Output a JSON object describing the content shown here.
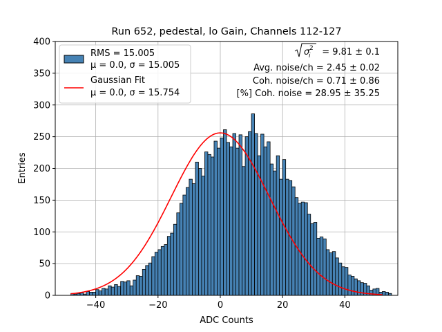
{
  "chart_data": {
    "type": "bar",
    "title": "Run 652, pedestal, lo Gain, Channels 112-127",
    "xlabel": "ADC Counts",
    "ylabel": "Entries",
    "xlim": [
      -53,
      57
    ],
    "ylim": [
      0,
      400
    ],
    "x_ticks": [
      -40,
      -20,
      0,
      20,
      40
    ],
    "y_ticks": [
      0,
      50,
      100,
      150,
      200,
      250,
      300,
      350,
      400
    ],
    "grid": true,
    "legend_position": "upper-left",
    "bin_width": 1,
    "bin_start": -48,
    "histogram": {
      "name": "RMS = 15.005",
      "stats": "μ = 0.0, σ = 15.005",
      "color": "#4682b4",
      "edge_color": "#000000",
      "values": [
        3,
        2,
        3,
        4,
        2,
        6,
        5,
        5,
        9,
        7,
        11,
        10,
        15,
        13,
        17,
        14,
        22,
        21,
        23,
        15,
        24,
        31,
        30,
        41,
        47,
        51,
        61,
        68,
        72,
        77,
        80,
        93,
        98,
        112,
        130,
        145,
        158,
        170,
        183,
        176,
        210,
        200,
        188,
        226,
        222,
        218,
        243,
        232,
        248,
        261,
        241,
        234,
        255,
        232,
        253,
        203,
        250,
        258,
        286,
        255,
        220,
        254,
        234,
        242,
        207,
        196,
        220,
        183,
        214,
        183,
        181,
        171,
        154,
        145,
        147,
        146,
        128,
        113,
        115,
        90,
        92,
        89,
        72,
        67,
        69,
        59,
        51,
        45,
        44,
        32,
        30,
        26,
        23,
        20,
        19,
        15,
        8,
        10,
        11,
        5,
        6,
        5,
        3
      ]
    },
    "fit": {
      "name": "Gaussian Fit",
      "stats": "μ = 0.0, σ = 15.754",
      "color": "#ff0000",
      "mu": 0.0,
      "sigma": 15.754,
      "amplitude": 256,
      "x_range": [
        -48,
        52
      ]
    },
    "annotations": {
      "line1_value": "= 9.81 ± 0.1",
      "line2": "Avg. noise/ch = 2.45 ± 0.02",
      "line3": "Coh. noise/ch = 0.71 ± 0.86",
      "line4": "[%] Coh. noise = 28.95 ± 35.25"
    }
  }
}
